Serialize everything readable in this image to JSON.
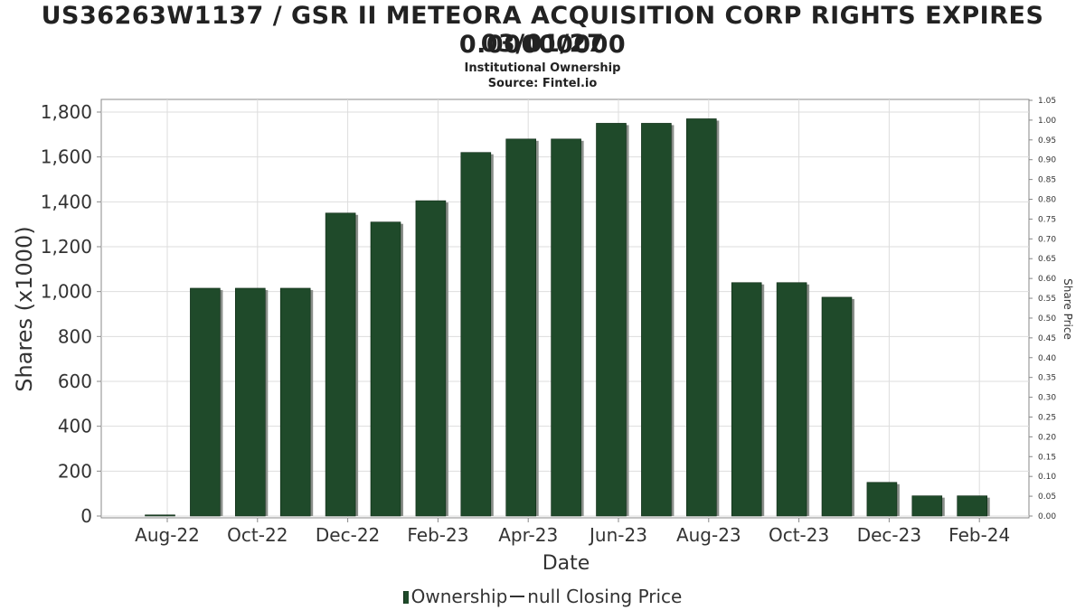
{
  "header": {
    "title_line1": "US36263W1137 / GSR II METEORA ACQUISITION CORP RIGHTS EXPIRES 03/01/27",
    "title_line2": "0.00000000",
    "subtitle_line1": "Institutional Ownership",
    "subtitle_line2": "Source: Fintel.io"
  },
  "legend": {
    "ownership_label": "Ownership",
    "price_label": "null Closing Price"
  },
  "colors": {
    "bar": "#1f4a2a",
    "bar_shadow": "#8a8f8a",
    "grid": "#dddddd",
    "axis": "#888888"
  },
  "chart_data": {
    "type": "bar",
    "title": "US36263W1137 / GSR II METEORA ACQUISITION CORP RIGHTS EXPIRES 03/01/27 0.00000000",
    "subtitle": "Institutional Ownership",
    "xlabel": "Date",
    "ylabel": "Shares (x1000)",
    "y2label": "Share Price",
    "ylim": [
      0,
      1850
    ],
    "y2lim": [
      0,
      1.05
    ],
    "yticks": [
      0,
      200,
      400,
      600,
      800,
      1000,
      1200,
      1400,
      1600,
      1800
    ],
    "ytick_labels": [
      "0",
      "200",
      "400",
      "600",
      "800",
      "1,000",
      "1,200",
      "1,400",
      "1,600",
      "1,800"
    ],
    "y2ticks": [
      "0.00",
      "0.05",
      "0.10",
      "0.15",
      "0.20",
      "0.25",
      "0.30",
      "0.35",
      "0.40",
      "0.45",
      "0.50",
      "0.55",
      "0.60",
      "0.65",
      "0.70",
      "0.75",
      "0.80",
      "0.85",
      "0.90",
      "0.95",
      "1.00",
      "1.05"
    ],
    "xtick_labels": [
      "Aug-22",
      "Oct-22",
      "Dec-22",
      "Feb-23",
      "Apr-23",
      "Jun-23",
      "Aug-23",
      "Oct-23",
      "Dec-23",
      "Feb-24"
    ],
    "grid": true,
    "legend_position": "bottom",
    "series": [
      {
        "name": "Ownership",
        "values": [
          5,
          1015,
          1015,
          1015,
          1350,
          1310,
          1405,
          1620,
          1680,
          1680,
          1750,
          1750,
          1770,
          1040,
          1040,
          975,
          150,
          90,
          90
        ]
      }
    ]
  }
}
